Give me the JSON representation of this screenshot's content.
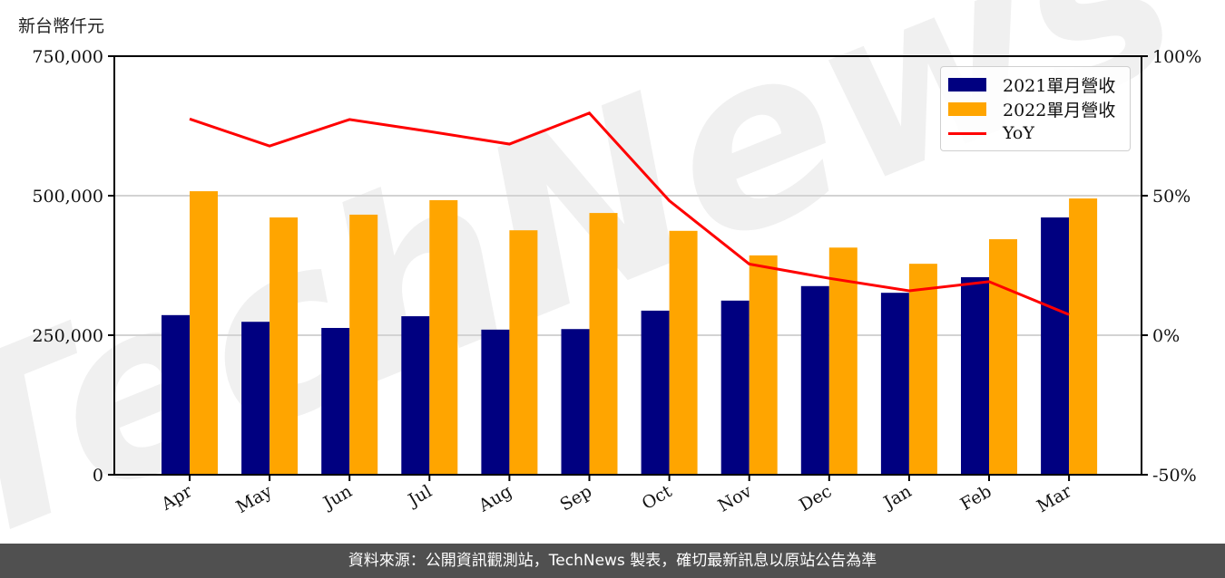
{
  "chart_data": {
    "type": "bar",
    "title": "",
    "unit_label": "新台幣仟元",
    "xlabel": "",
    "ylabel": "新台幣仟元",
    "y2label": "YoY",
    "categories": [
      "Apr",
      "May",
      "Jun",
      "Jul",
      "Aug",
      "Sep",
      "Oct",
      "Nov",
      "Dec",
      "Jan",
      "Feb",
      "Mar"
    ],
    "series": [
      {
        "name": "2021單月營收",
        "type": "bar",
        "color": "#000080",
        "values": [
          286000,
          274000,
          263000,
          284000,
          260000,
          261000,
          294000,
          312000,
          338000,
          326000,
          354000,
          461000
        ]
      },
      {
        "name": "2022單月營收",
        "type": "bar",
        "color": "#FFA500",
        "values": [
          508000,
          461000,
          466000,
          492000,
          438000,
          469000,
          437000,
          393000,
          407000,
          378000,
          422000,
          495000
        ]
      },
      {
        "name": "YoY",
        "type": "line",
        "axis": "right",
        "color": "#FF0000",
        "values": [
          77.5,
          67.8,
          77.3,
          73.0,
          68.5,
          79.6,
          48.2,
          25.5,
          20.4,
          15.9,
          19.2,
          7.4
        ]
      }
    ],
    "ylim": [
      0,
      750000
    ],
    "yticks": [
      "0",
      "250,000",
      "500,000",
      "750,000"
    ],
    "y2lim": [
      -50,
      100
    ],
    "y2ticks": [
      "-50%",
      "0%",
      "50%",
      "100%"
    ],
    "grid": "horizontal",
    "legend_position": "upper right",
    "watermark": "TechNews"
  },
  "legend": {
    "items": [
      {
        "label": "2021單月營收",
        "color": "#000080",
        "kind": "bar"
      },
      {
        "label": "2022單月營收",
        "color": "#FFA500",
        "kind": "bar"
      },
      {
        "label": "YoY",
        "color": "#FF0000",
        "kind": "line"
      }
    ]
  },
  "footer": {
    "text": "資料來源：公開資訊觀測站，TechNews 製表，確切最新訊息以原站公告為準"
  }
}
